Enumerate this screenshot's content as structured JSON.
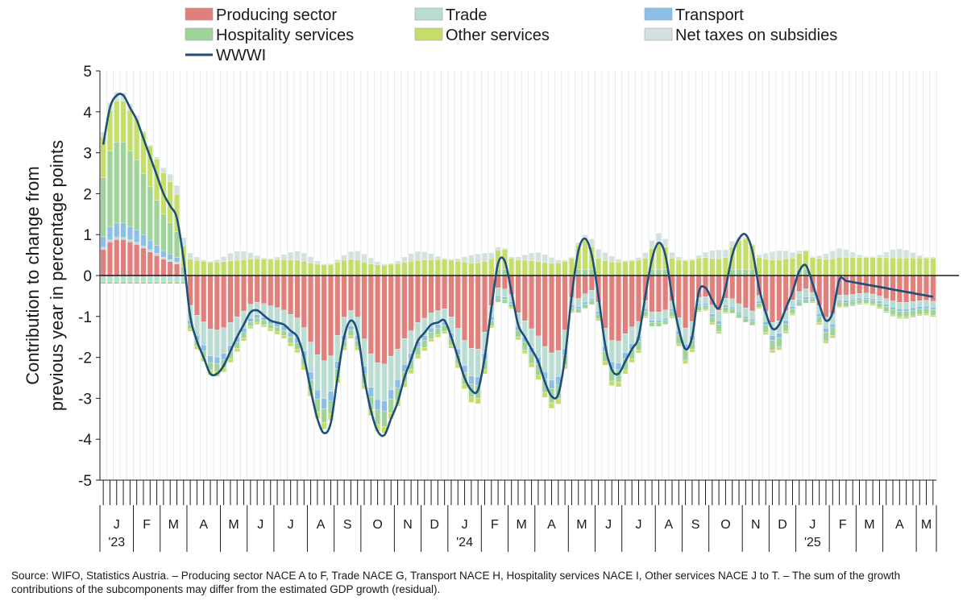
{
  "chart_data": {
    "type": "stacked-bar+line",
    "ylabel": [
      "Contribution to change from",
      "previous year in percentage points"
    ],
    "ylim": [
      -5,
      5
    ],
    "yticks": [
      5,
      4,
      3,
      2,
      1,
      0,
      -1,
      -2,
      -3,
      -4,
      -5
    ],
    "legend": [
      {
        "key": "producing",
        "label": "Producing sector",
        "color": "#e0807c",
        "kind": "bar"
      },
      {
        "key": "trade",
        "label": "Trade",
        "color": "#b9dcd3",
        "kind": "bar"
      },
      {
        "key": "transport",
        "label": "Transport",
        "color": "#8cbfe6",
        "kind": "bar"
      },
      {
        "key": "hospitality",
        "label": "Hospitality services",
        "color": "#9fd39a",
        "kind": "bar"
      },
      {
        "key": "other",
        "label": "Other services",
        "color": "#c5de6a",
        "kind": "bar"
      },
      {
        "key": "taxes",
        "label": "Net taxes on subsidies",
        "color": "#d3e2e0",
        "kind": "bar"
      },
      {
        "key": "wwwi",
        "label": "WWWI",
        "color": "#1f4e79",
        "kind": "line"
      }
    ],
    "months": [
      {
        "label": "J",
        "year": "'23"
      },
      {
        "label": "F"
      },
      {
        "label": "M"
      },
      {
        "label": "A"
      },
      {
        "label": "M"
      },
      {
        "label": "J"
      },
      {
        "label": "J"
      },
      {
        "label": "A"
      },
      {
        "label": "S"
      },
      {
        "label": "O"
      },
      {
        "label": "N"
      },
      {
        "label": "D"
      },
      {
        "label": "J",
        "year": "'24"
      },
      {
        "label": "F"
      },
      {
        "label": "M"
      },
      {
        "label": "A"
      },
      {
        "label": "M"
      },
      {
        "label": "J"
      },
      {
        "label": "J"
      },
      {
        "label": "A"
      },
      {
        "label": "S"
      },
      {
        "label": "O"
      },
      {
        "label": "N"
      },
      {
        "label": "D"
      },
      {
        "label": "J",
        "year": "'25"
      },
      {
        "label": "F"
      },
      {
        "label": "M"
      },
      {
        "label": "A"
      },
      {
        "label": "M"
      }
    ],
    "weeks_per_month": [
      5,
      4,
      4,
      5,
      4,
      4,
      5,
      4,
      4,
      5,
      4,
      4,
      5,
      4,
      4,
      5,
      4,
      4,
      5,
      4,
      4,
      5,
      4,
      4,
      5,
      4,
      4,
      5,
      3
    ],
    "wwwi_anchors": [
      [
        0,
        3.2
      ],
      [
        1,
        4.1
      ],
      [
        2,
        4.4
      ],
      [
        3,
        4.4
      ],
      [
        5,
        3.8
      ],
      [
        7,
        2.9
      ],
      [
        9,
        2.0
      ],
      [
        11,
        1.4
      ],
      [
        12,
        0.4
      ],
      [
        13,
        -1.0
      ],
      [
        14,
        -1.6
      ],
      [
        15,
        -2.0
      ],
      [
        16,
        -2.4
      ],
      [
        17,
        -2.4
      ],
      [
        18,
        -2.2
      ],
      [
        20,
        -1.5
      ],
      [
        22,
        -0.9
      ],
      [
        23,
        -0.85
      ],
      [
        25,
        -1.1
      ],
      [
        27,
        -1.2
      ],
      [
        29,
        -1.5
      ],
      [
        30,
        -2.0
      ],
      [
        31,
        -2.8
      ],
      [
        32,
        -3.5
      ],
      [
        33,
        -3.85
      ],
      [
        34,
        -3.6
      ],
      [
        35,
        -2.5
      ],
      [
        36,
        -1.5
      ],
      [
        37,
        -1.1
      ],
      [
        38,
        -1.4
      ],
      [
        39,
        -2.5
      ],
      [
        40,
        -3.3
      ],
      [
        41,
        -3.8
      ],
      [
        42,
        -3.9
      ],
      [
        44,
        -3.1
      ],
      [
        45,
        -2.5
      ],
      [
        47,
        -1.6
      ],
      [
        49,
        -1.2
      ],
      [
        51,
        -1.1
      ],
      [
        52,
        -1.5
      ],
      [
        54,
        -2.5
      ],
      [
        55,
        -2.8
      ],
      [
        56,
        -2.8
      ],
      [
        57,
        -2.0
      ],
      [
        58,
        -0.8
      ],
      [
        59,
        0.3
      ],
      [
        60,
        0.35
      ],
      [
        61,
        -0.4
      ],
      [
        62,
        -1.2
      ],
      [
        63,
        -1.5
      ],
      [
        65,
        -2.1
      ],
      [
        66,
        -2.6
      ],
      [
        67,
        -2.95
      ],
      [
        68,
        -2.9
      ],
      [
        69,
        -2.0
      ],
      [
        70,
        -0.5
      ],
      [
        71,
        0.6
      ],
      [
        72,
        0.9
      ],
      [
        73,
        0.5
      ],
      [
        74,
        -0.5
      ],
      [
        75,
        -1.7
      ],
      [
        76,
        -2.3
      ],
      [
        77,
        -2.4
      ],
      [
        78,
        -2.1
      ],
      [
        79,
        -1.8
      ],
      [
        80,
        -1.5
      ],
      [
        81,
        -0.5
      ],
      [
        82,
        0.4
      ],
      [
        83,
        0.8
      ],
      [
        84,
        0.5
      ],
      [
        85,
        -0.5
      ],
      [
        86,
        -1.3
      ],
      [
        87,
        -1.8
      ],
      [
        88,
        -1.5
      ],
      [
        89,
        -0.4
      ],
      [
        90,
        -0.3
      ],
      [
        91,
        -0.6
      ],
      [
        92,
        -0.8
      ],
      [
        93,
        -0.3
      ],
      [
        94,
        0.5
      ],
      [
        95,
        0.9
      ],
      [
        96,
        1.0
      ],
      [
        97,
        0.6
      ],
      [
        98,
        -0.3
      ],
      [
        99,
        -0.9
      ],
      [
        100,
        -1.3
      ],
      [
        101,
        -1.2
      ],
      [
        102,
        -0.8
      ],
      [
        103,
        -0.4
      ],
      [
        104,
        0.1
      ],
      [
        105,
        0.25
      ],
      [
        106,
        -0.2
      ],
      [
        107,
        -0.7
      ],
      [
        108,
        -1.1
      ],
      [
        109,
        -0.9
      ],
      [
        110,
        -0.1
      ]
    ]
  },
  "source_note": "Source: WIFO, Statistics Austria. – Producing sector NACE A to F, Trade NACE G, Transport NACE H, Hospitality services NACE I, Other services NACE J to T. – The sum of the growth contributions of the subcomponents may differ from the estimated GDP growth (residual)."
}
